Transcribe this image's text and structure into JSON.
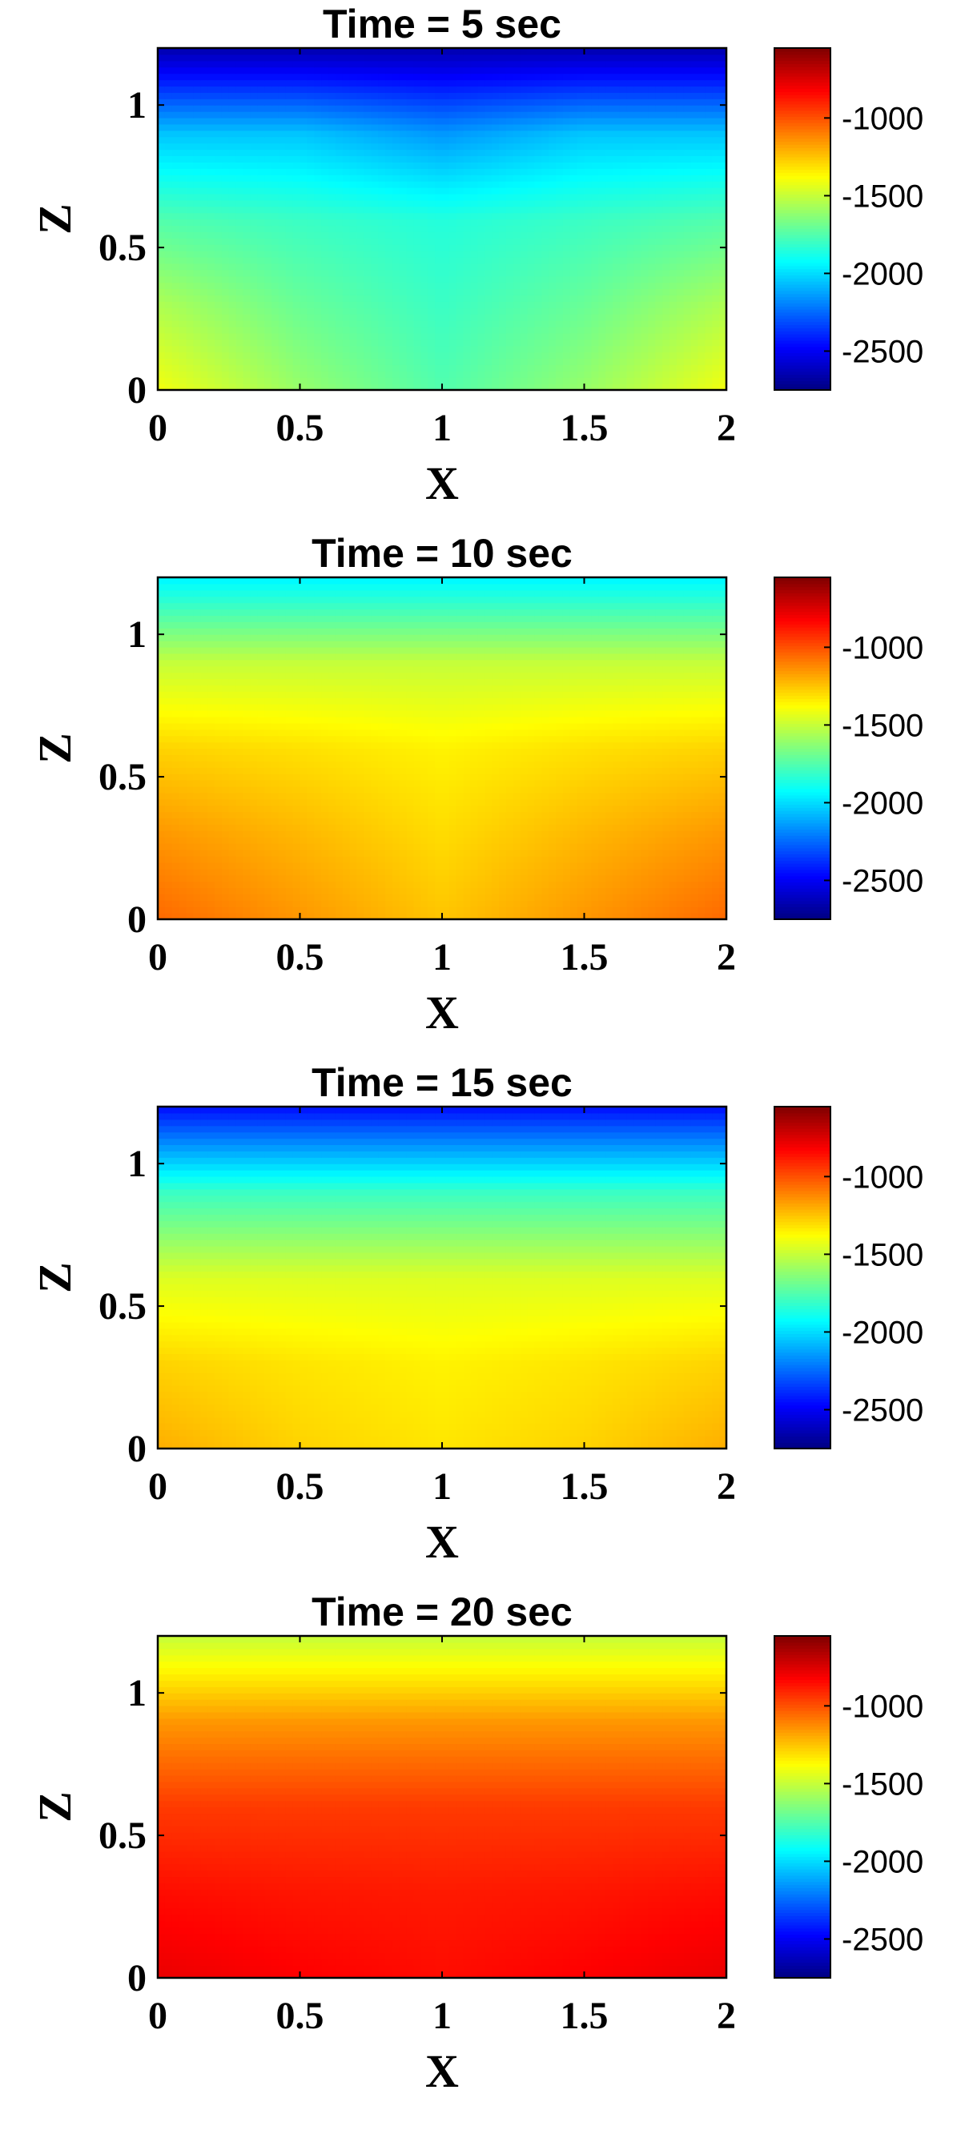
{
  "chart_data": [
    {
      "type": "heatmap",
      "title": "Time = 5 sec",
      "xlabel": "X",
      "ylabel": "Z",
      "xlim": [
        0,
        2
      ],
      "ylim": [
        0,
        1.2
      ],
      "xticks": [
        "0",
        "0.5",
        "1",
        "1.5",
        "2"
      ],
      "yticks": [
        "0",
        "0.5",
        "1"
      ],
      "colorbar": {
        "colormap": "jet",
        "range": [
          -2750,
          -550
        ],
        "ticks": [
          "-1000",
          "-1500",
          "-2000",
          "-2500"
        ]
      },
      "field_samples": {
        "x": [
          0,
          0.5,
          1,
          1.5,
          2
        ],
        "z": [
          0,
          0.3,
          0.6,
          0.9,
          1.2
        ],
        "values": [
          [
            -1400,
            -1600,
            -1750,
            -1600,
            -1400
          ],
          [
            -1550,
            -1700,
            -1800,
            -1700,
            -1550
          ],
          [
            -1750,
            -1800,
            -1850,
            -1800,
            -1750
          ],
          [
            -2050,
            -2050,
            -2150,
            -2050,
            -2050
          ],
          [
            -2650,
            -2650,
            -2650,
            -2650,
            -2650
          ]
        ]
      }
    },
    {
      "type": "heatmap",
      "title": "Time = 10 sec",
      "xlabel": "X",
      "ylabel": "Z",
      "xlim": [
        0,
        2
      ],
      "ylim": [
        0,
        1.2
      ],
      "xticks": [
        "0",
        "0.5",
        "1",
        "1.5",
        "2"
      ],
      "yticks": [
        "0",
        "0.5",
        "1"
      ],
      "colorbar": {
        "colormap": "jet",
        "range": [
          -2750,
          -550
        ],
        "ticks": [
          "-1000",
          "-1500",
          "-2000",
          "-2500"
        ]
      },
      "field_samples": {
        "x": [
          0,
          0.5,
          1,
          1.5,
          2
        ],
        "z": [
          0,
          0.3,
          0.6,
          0.9,
          1.2
        ],
        "values": [
          [
            -1050,
            -1150,
            -1250,
            -1150,
            -1050
          ],
          [
            -1150,
            -1220,
            -1300,
            -1220,
            -1150
          ],
          [
            -1280,
            -1310,
            -1350,
            -1310,
            -1280
          ],
          [
            -1500,
            -1500,
            -1500,
            -1500,
            -1500
          ],
          [
            -1950,
            -1950,
            -1950,
            -1950,
            -1950
          ]
        ]
      }
    },
    {
      "type": "heatmap",
      "title": "Time = 15 sec",
      "xlabel": "X",
      "ylabel": "Z",
      "xlim": [
        0,
        2
      ],
      "ylim": [
        0,
        1.2
      ],
      "xticks": [
        "0",
        "0.5",
        "1",
        "1.5",
        "2"
      ],
      "yticks": [
        "0",
        "0.5",
        "1"
      ],
      "colorbar": {
        "colormap": "jet",
        "range": [
          -2750,
          -550
        ],
        "ticks": [
          "-1000",
          "-1500",
          "-2000",
          "-2500"
        ]
      },
      "field_samples": {
        "x": [
          0,
          0.5,
          1,
          1.5,
          2
        ],
        "z": [
          0,
          0.3,
          0.6,
          0.9,
          1.2
        ],
        "values": [
          [
            -1200,
            -1280,
            -1320,
            -1280,
            -1200
          ],
          [
            -1280,
            -1320,
            -1350,
            -1320,
            -1280
          ],
          [
            -1450,
            -1450,
            -1450,
            -1450,
            -1450
          ],
          [
            -1800,
            -1800,
            -1800,
            -1800,
            -1800
          ],
          [
            -2450,
            -2450,
            -2450,
            -2450,
            -2450
          ]
        ]
      }
    },
    {
      "type": "heatmap",
      "title": "Time = 20 sec",
      "xlabel": "X",
      "ylabel": "Z",
      "xlim": [
        0,
        2
      ],
      "ylim": [
        0,
        1.2
      ],
      "xticks": [
        "0",
        "0.5",
        "1",
        "1.5",
        "2"
      ],
      "yticks": [
        "0",
        "0.5",
        "1"
      ],
      "colorbar": {
        "colormap": "jet",
        "range": [
          -2750,
          -550
        ],
        "ticks": [
          "-1000",
          "-1500",
          "-2000",
          "-2500"
        ]
      },
      "field_samples": {
        "x": [
          0,
          0.5,
          1,
          1.5,
          2
        ],
        "z": [
          0,
          0.3,
          0.6,
          0.9,
          1.2
        ],
        "values": [
          [
            -780,
            -820,
            -850,
            -820,
            -780
          ],
          [
            -850,
            -870,
            -880,
            -870,
            -850
          ],
          [
            -950,
            -950,
            -950,
            -950,
            -950
          ],
          [
            -1150,
            -1150,
            -1150,
            -1150,
            -1150
          ],
          [
            -1500,
            -1500,
            -1500,
            -1500,
            -1500
          ]
        ]
      }
    }
  ]
}
